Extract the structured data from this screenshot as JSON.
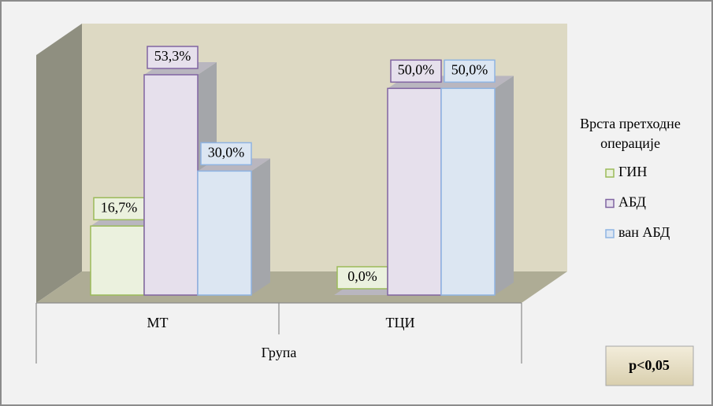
{
  "chart_data": {
    "type": "bar3d",
    "categories": [
      "МТ",
      "ТЦИ"
    ],
    "x_label": "Група",
    "legend_title": "Врста претходне операције",
    "annotation": "p<0,05",
    "series": [
      {
        "name": "ГИН",
        "color": "#ebf1de",
        "edge": "#9bbb59",
        "values": [
          16.7,
          0.0
        ],
        "value_labels": [
          "16,7%",
          "0,0%"
        ]
      },
      {
        "name": "АБД",
        "color": "#e6e0ec",
        "edge": "#8064a2",
        "values": [
          53.3,
          50.0
        ],
        "value_labels": [
          "53,3%",
          "50,0%"
        ]
      },
      {
        "name": "ван АБД",
        "color": "#dce6f2",
        "edge": "#8eb4e3",
        "values": [
          30.0,
          50.0
        ],
        "value_labels": [
          "30,0%",
          "50,0%"
        ]
      }
    ]
  }
}
